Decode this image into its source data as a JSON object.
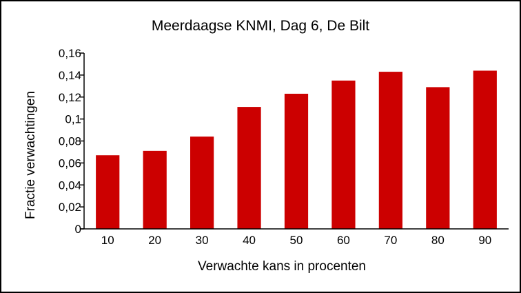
{
  "chart_data": {
    "type": "bar",
    "title": "Meerdaagse KNMI, Dag 6, De Bilt",
    "xlabel": "Verwachte kans in procenten",
    "ylabel": "Fractie verwachtingen",
    "categories": [
      "10",
      "20",
      "30",
      "40",
      "50",
      "60",
      "70",
      "80",
      "90"
    ],
    "values": [
      0.067,
      0.071,
      0.084,
      0.111,
      0.123,
      0.135,
      0.143,
      0.129,
      0.144
    ],
    "ylim": [
      0,
      0.16
    ],
    "yticks": [
      0,
      0.02,
      0.04,
      0.06,
      0.08,
      0.1,
      0.12,
      0.14,
      0.16
    ],
    "ytick_labels": [
      "0",
      "0,02",
      "0,04",
      "0,06",
      "0,08",
      "0,1",
      "0,12",
      "0,14",
      "0,16"
    ],
    "grid": false,
    "legend": "none",
    "bar_color": "#cc0000"
  }
}
